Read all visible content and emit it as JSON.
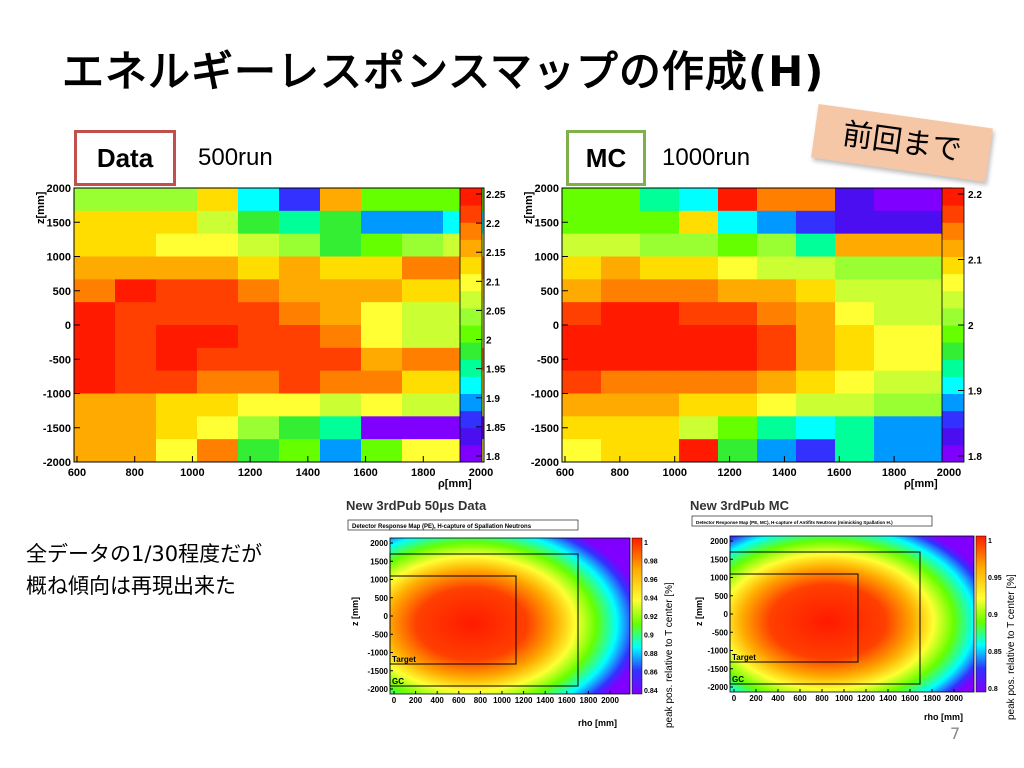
{
  "slide": {
    "title": "エネルギーレスポンスマップの作成(H)",
    "sticky_note": "前回まで",
    "data_label": "Data",
    "data_runs": "500run",
    "mc_label": "MC",
    "mc_runs": "1000run",
    "note_line1": "全データの1/30程度だが",
    "note_line2": "概ね傾向は再現出来た",
    "page_number": "7"
  },
  "colors": {
    "palette": [
      "#7f00ff",
      "#4b0ef0",
      "#3231ff",
      "#0099ff",
      "#00ffff",
      "#00ff99",
      "#33ee33",
      "#66ff00",
      "#99ff33",
      "#ccff33",
      "#ffff33",
      "#ffdd00",
      "#ffaa00",
      "#ff7f00",
      "#ff4000",
      "#ff1a00"
    ],
    "data_box_border": "#c0504d",
    "mc_box_border": "#7fb04a",
    "sticky_bg": "#f6c7a6"
  },
  "maps": {
    "data_map": {
      "x_ticks": [
        "600",
        "800",
        "1000",
        "1200",
        "1400",
        "1600",
        "1800",
        "2000"
      ],
      "y_ticks": [
        "2000",
        "1500",
        "1000",
        "500",
        "0",
        "-500",
        "-1000",
        "-1500",
        "-2000"
      ],
      "x_title": "ρ[mm]",
      "y_title": "z[mm]",
      "color_ticks": [
        "2.25",
        "2.2",
        "2.15",
        "2.1",
        "2.05",
        "2",
        "1.95",
        "1.9",
        "1.85",
        "1.8"
      ],
      "grid": [
        [
          8,
          8,
          8,
          11,
          4,
          2,
          12,
          7,
          7,
          7
        ],
        [
          11,
          11,
          11,
          9,
          6,
          5,
          6,
          3,
          3,
          4
        ],
        [
          11,
          11,
          10,
          10,
          9,
          8,
          6,
          7,
          8,
          9
        ],
        [
          12,
          12,
          12,
          12,
          11,
          12,
          11,
          11,
          13,
          13
        ],
        [
          13,
          15,
          14,
          14,
          13,
          12,
          12,
          12,
          11,
          11
        ],
        [
          15,
          14,
          14,
          14,
          14,
          13,
          12,
          10,
          9,
          9
        ],
        [
          15,
          14,
          15,
          15,
          14,
          14,
          13,
          10,
          9,
          9
        ],
        [
          15,
          14,
          15,
          14,
          14,
          14,
          14,
          12,
          13,
          13
        ],
        [
          15,
          14,
          14,
          13,
          13,
          14,
          13,
          13,
          11,
          11
        ],
        [
          12,
          12,
          11,
          11,
          10,
          10,
          9,
          10,
          9,
          9
        ],
        [
          12,
          12,
          11,
          10,
          8,
          6,
          5,
          0,
          0,
          0
        ],
        [
          12,
          12,
          10,
          13,
          6,
          7,
          3,
          7,
          10,
          10
        ]
      ]
    },
    "mc_map": {
      "x_ticks": [
        "600",
        "800",
        "1000",
        "1200",
        "1400",
        "1600",
        "1800",
        "2000"
      ],
      "y_ticks": [
        "2000",
        "1500",
        "1000",
        "500",
        "0",
        "-500",
        "-1000",
        "-1500",
        "-2000"
      ],
      "x_title": "ρ[mm]",
      "y_title": "z[mm]",
      "color_ticks": [
        "2.2",
        "2.1",
        "2",
        "1.9",
        "1.8"
      ],
      "grid": [
        [
          7,
          7,
          5,
          4,
          15,
          13,
          13,
          1,
          0,
          0
        ],
        [
          7,
          7,
          7,
          11,
          4,
          3,
          2,
          1,
          1,
          1
        ],
        [
          9,
          9,
          8,
          8,
          7,
          8,
          5,
          12,
          12,
          12
        ],
        [
          11,
          12,
          11,
          11,
          10,
          9,
          9,
          8,
          8,
          8
        ],
        [
          12,
          13,
          13,
          13,
          12,
          12,
          11,
          9,
          9,
          9
        ],
        [
          14,
          15,
          15,
          14,
          14,
          13,
          12,
          10,
          9,
          9
        ],
        [
          15,
          15,
          15,
          15,
          15,
          14,
          12,
          11,
          10,
          10
        ],
        [
          15,
          15,
          15,
          15,
          15,
          14,
          12,
          11,
          10,
          10
        ],
        [
          14,
          13,
          13,
          13,
          13,
          12,
          11,
          10,
          9,
          9
        ],
        [
          12,
          12,
          12,
          11,
          11,
          10,
          9,
          9,
          8,
          8
        ],
        [
          11,
          11,
          11,
          9,
          7,
          5,
          4,
          5,
          3,
          3
        ],
        [
          10,
          11,
          11,
          15,
          6,
          3,
          2,
          5,
          3,
          3
        ]
      ]
    },
    "new_data_map": {
      "title": "New 3rdPub 50μs Data",
      "subtitle": "Detector Response Map (PE), H-capture of Spallation Neutrons",
      "x_ticks": [
        "0",
        "200",
        "400",
        "600",
        "800",
        "1000",
        "1200",
        "1400",
        "1600",
        "1800",
        "2000"
      ],
      "y_ticks": [
        "2000",
        "1500",
        "1000",
        "500",
        "0",
        "-500",
        "-1000",
        "-1500",
        "-2000"
      ],
      "x_title": "rho [mm]",
      "y_title": "z [mm]",
      "color_ticks": [
        "1",
        "0.98",
        "0.96",
        "0.94",
        "0.92",
        "0.9",
        "0.88",
        "0.86",
        "0.84"
      ],
      "color_axis_title": "peak pos. relative to T center [%]",
      "target_label": "Target",
      "gc_label": "GC"
    },
    "new_mc_map": {
      "title": "New 3rdPub MC",
      "subtitle": "Detector Response Map (PE, MC), H-capture of Antifits Neutrons (mimicking Spallation H.)",
      "x_ticks": [
        "0",
        "200",
        "400",
        "600",
        "800",
        "1000",
        "1200",
        "1400",
        "1600",
        "1800",
        "2000"
      ],
      "y_ticks": [
        "2000",
        "1500",
        "1000",
        "500",
        "0",
        "-500",
        "-1000",
        "-1500",
        "-2000"
      ],
      "x_title": "rho [mm]",
      "y_title": "z [mm]",
      "color_ticks": [
        "1",
        "0.95",
        "0.9",
        "0.85",
        "0.8"
      ],
      "color_axis_title": "peak pos. relative to T center [%]",
      "target_label": "Target",
      "gc_label": "GC"
    }
  }
}
